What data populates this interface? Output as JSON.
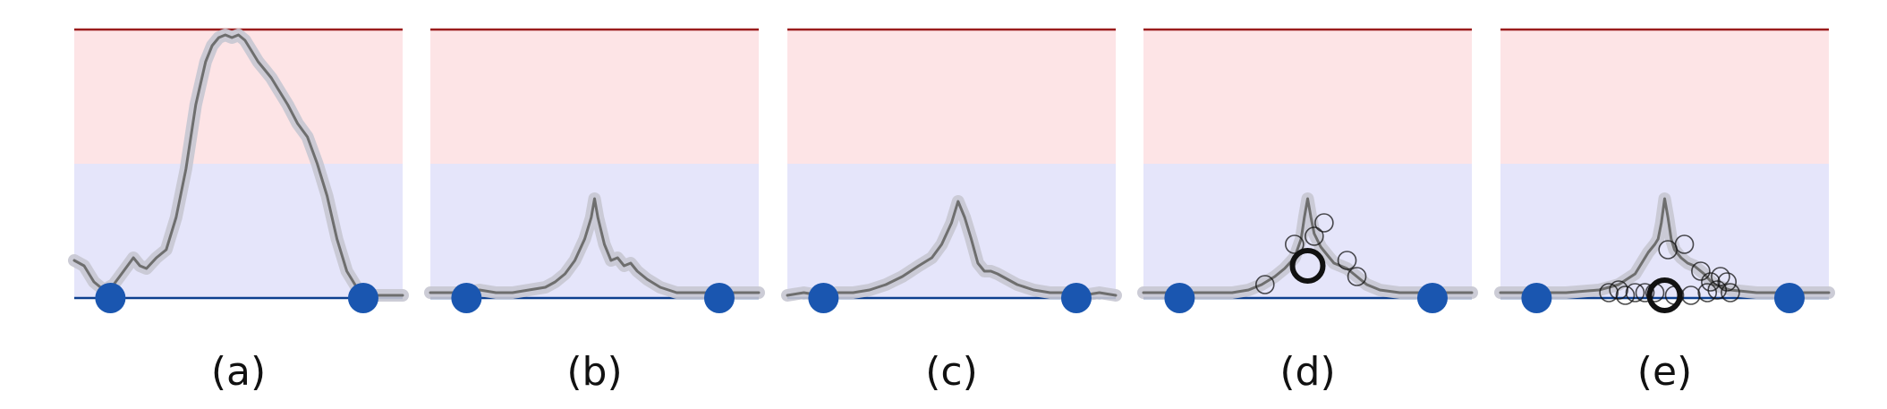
{
  "colors": {
    "upper_band": "#fde4e6",
    "lower_band": "#e5e5fa",
    "top_line": "#9b1c1c",
    "baseline": "#0d3f8f",
    "endpoint": "#1a56b0",
    "curve": "#6e6e6e",
    "curve_halo": "#c6c6d2",
    "marker": "#111111"
  },
  "chart_data": [
    {
      "type": "line",
      "panel_label": "(a)",
      "title": "",
      "xlabel": "",
      "ylabel": "",
      "xlim": [
        0,
        1
      ],
      "ylim": [
        0,
        1
      ],
      "band_split": 0.5,
      "grid": false,
      "series": [
        {
          "x": [
            0,
            0.03,
            0.06,
            0.09,
            0.12,
            0.15,
            0.18,
            0.2,
            0.22,
            0.25,
            0.28,
            0.31,
            0.34,
            0.37,
            0.4,
            0.42,
            0.44,
            0.46,
            0.48,
            0.5,
            0.52,
            0.54,
            0.56,
            0.58,
            0.6,
            0.62,
            0.65,
            0.68,
            0.71,
            0.74,
            0.77,
            0.8,
            0.83,
            0.86,
            0.9,
            0.95,
            1
          ],
          "y": [
            0.14,
            0.12,
            0.06,
            0.03,
            0.05,
            0.1,
            0.15,
            0.12,
            0.11,
            0.15,
            0.18,
            0.3,
            0.48,
            0.72,
            0.88,
            0.94,
            0.97,
            0.98,
            0.97,
            0.98,
            0.96,
            0.92,
            0.88,
            0.85,
            0.82,
            0.78,
            0.72,
            0.65,
            0.6,
            0.5,
            0.38,
            0.22,
            0.1,
            0.04,
            0.01,
            0.01,
            0.01
          ]
        }
      ],
      "endpoints": [
        0.11,
        0.88
      ],
      "markers": []
    },
    {
      "type": "line",
      "panel_label": "(b)",
      "title": "",
      "xlabel": "",
      "ylabel": "",
      "xlim": [
        0,
        1
      ],
      "ylim": [
        0,
        1
      ],
      "band_split": 0.5,
      "grid": false,
      "series": [
        {
          "x": [
            0,
            0.05,
            0.1,
            0.15,
            0.2,
            0.25,
            0.3,
            0.35,
            0.38,
            0.41,
            0.44,
            0.47,
            0.49,
            0.5,
            0.51,
            0.53,
            0.55,
            0.57,
            0.59,
            0.61,
            0.63,
            0.66,
            0.7,
            0.75,
            0.8,
            0.85,
            0.9,
            0.95,
            1
          ],
          "y": [
            0.02,
            0.02,
            0.02,
            0.03,
            0.02,
            0.02,
            0.03,
            0.04,
            0.06,
            0.09,
            0.14,
            0.22,
            0.3,
            0.37,
            0.3,
            0.2,
            0.14,
            0.15,
            0.12,
            0.13,
            0.1,
            0.07,
            0.04,
            0.02,
            0.02,
            0.02,
            0.02,
            0.02,
            0.02
          ]
        }
      ],
      "endpoints": [
        0.11,
        0.88
      ],
      "markers": []
    },
    {
      "type": "line",
      "panel_label": "(c)",
      "title": "",
      "xlabel": "",
      "ylabel": "",
      "xlim": [
        0,
        1
      ],
      "ylim": [
        0,
        1
      ],
      "band_split": 0.5,
      "grid": false,
      "series": [
        {
          "x": [
            0,
            0.05,
            0.1,
            0.15,
            0.2,
            0.25,
            0.3,
            0.35,
            0.4,
            0.44,
            0.47,
            0.5,
            0.52,
            0.54,
            0.56,
            0.58,
            0.6,
            0.62,
            0.64,
            0.67,
            0.7,
            0.75,
            0.8,
            0.85,
            0.9,
            0.95,
            1
          ],
          "y": [
            0.01,
            0.02,
            0.01,
            0.02,
            0.02,
            0.03,
            0.05,
            0.08,
            0.12,
            0.15,
            0.2,
            0.28,
            0.36,
            0.3,
            0.22,
            0.13,
            0.1,
            0.1,
            0.09,
            0.07,
            0.05,
            0.03,
            0.02,
            0.02,
            0.01,
            0.02,
            0.01
          ]
        }
      ],
      "endpoints": [
        0.11,
        0.88
      ],
      "markers": []
    },
    {
      "type": "line",
      "panel_label": "(d)",
      "title": "",
      "xlabel": "",
      "ylabel": "",
      "xlim": [
        0,
        1
      ],
      "ylim": [
        0,
        1
      ],
      "band_split": 0.5,
      "grid": false,
      "series": [
        {
          "x": [
            0,
            0.1,
            0.2,
            0.27,
            0.32,
            0.36,
            0.4,
            0.43,
            0.46,
            0.48,
            0.49,
            0.5,
            0.51,
            0.52,
            0.54,
            0.56,
            0.58,
            0.6,
            0.62,
            0.65,
            0.68,
            0.72,
            0.78,
            0.85,
            0.92,
            1
          ],
          "y": [
            0.02,
            0.02,
            0.02,
            0.02,
            0.03,
            0.05,
            0.08,
            0.11,
            0.15,
            0.22,
            0.3,
            0.37,
            0.3,
            0.24,
            0.19,
            0.16,
            0.13,
            0.12,
            0.11,
            0.08,
            0.05,
            0.03,
            0.02,
            0.02,
            0.02,
            0.02
          ]
        }
      ],
      "endpoints": [
        0.11,
        0.88
      ],
      "markers": [
        {
          "x": 0.37,
          "y": 0.05,
          "emphasis": false
        },
        {
          "x": 0.46,
          "y": 0.2,
          "emphasis": false
        },
        {
          "x": 0.5,
          "y": 0.12,
          "emphasis": true
        },
        {
          "x": 0.52,
          "y": 0.23,
          "emphasis": false
        },
        {
          "x": 0.55,
          "y": 0.28,
          "emphasis": false
        },
        {
          "x": 0.62,
          "y": 0.14,
          "emphasis": false
        },
        {
          "x": 0.65,
          "y": 0.08,
          "emphasis": false
        }
      ]
    },
    {
      "type": "line",
      "panel_label": "(e)",
      "title": "",
      "xlabel": "",
      "ylabel": "",
      "xlim": [
        0,
        1
      ],
      "ylim": [
        0,
        1
      ],
      "band_split": 0.5,
      "grid": false,
      "series": [
        {
          "x": [
            0,
            0.1,
            0.2,
            0.3,
            0.36,
            0.41,
            0.45,
            0.47,
            0.48,
            0.49,
            0.5,
            0.51,
            0.52,
            0.53,
            0.55,
            0.57,
            0.59,
            0.62,
            0.65,
            0.7,
            0.78,
            0.86,
            0.93,
            1
          ],
          "y": [
            0.02,
            0.02,
            0.02,
            0.03,
            0.05,
            0.09,
            0.17,
            0.2,
            0.22,
            0.28,
            0.37,
            0.3,
            0.22,
            0.18,
            0.15,
            0.13,
            0.12,
            0.09,
            0.05,
            0.03,
            0.02,
            0.02,
            0.02,
            0.02
          ]
        }
      ],
      "endpoints": [
        0.11,
        0.88
      ],
      "markers": [
        {
          "x": 0.33,
          "y": 0.02,
          "emphasis": false
        },
        {
          "x": 0.36,
          "y": 0.03,
          "emphasis": false
        },
        {
          "x": 0.38,
          "y": 0.01,
          "emphasis": false
        },
        {
          "x": 0.41,
          "y": 0.02,
          "emphasis": false
        },
        {
          "x": 0.44,
          "y": 0.02,
          "emphasis": false
        },
        {
          "x": 0.47,
          "y": 0.02,
          "emphasis": false
        },
        {
          "x": 0.5,
          "y": 0.01,
          "emphasis": true
        },
        {
          "x": 0.53,
          "y": 0.01,
          "emphasis": false
        },
        {
          "x": 0.58,
          "y": 0.01,
          "emphasis": false
        },
        {
          "x": 0.63,
          "y": 0.02,
          "emphasis": false
        },
        {
          "x": 0.66,
          "y": 0.03,
          "emphasis": false
        },
        {
          "x": 0.67,
          "y": 0.08,
          "emphasis": false
        },
        {
          "x": 0.69,
          "y": 0.06,
          "emphasis": false
        },
        {
          "x": 0.7,
          "y": 0.02,
          "emphasis": false
        },
        {
          "x": 0.56,
          "y": 0.2,
          "emphasis": false
        },
        {
          "x": 0.51,
          "y": 0.18,
          "emphasis": false
        },
        {
          "x": 0.61,
          "y": 0.1,
          "emphasis": false
        },
        {
          "x": 0.64,
          "y": 0.06,
          "emphasis": false
        }
      ]
    }
  ]
}
